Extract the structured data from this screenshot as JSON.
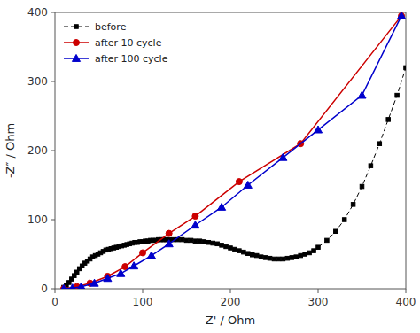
{
  "chart_data": {
    "type": "line",
    "xlabel": "Z' / Ohm",
    "ylabel": "-Z″ / Ohm",
    "xlim": [
      0,
      400
    ],
    "ylim": [
      0,
      400
    ],
    "xticks": [
      0,
      100,
      200,
      300,
      400
    ],
    "yticks": [
      0,
      100,
      200,
      300,
      400
    ],
    "grid": false,
    "legend": "upper left",
    "color": "#ffffff",
    "series": [
      {
        "name": "before",
        "color": "#000000",
        "marker": "square",
        "line_style": "dashed",
        "x": [
          10,
          13,
          16,
          19,
          22,
          25,
          28,
          31,
          34,
          37,
          40,
          43,
          46,
          49,
          52,
          55,
          58,
          61,
          64,
          67,
          70,
          73,
          76,
          79,
          82,
          85,
          88,
          91,
          94,
          97,
          100,
          103,
          106,
          109,
          112,
          115,
          118,
          121,
          124,
          127,
          130,
          135,
          140,
          145,
          150,
          155,
          160,
          165,
          170,
          175,
          180,
          185,
          190,
          195,
          200,
          205,
          210,
          215,
          220,
          225,
          230,
          235,
          240,
          245,
          250,
          255,
          260,
          265,
          270,
          275,
          280,
          285,
          290,
          295,
          300,
          310,
          320,
          330,
          340,
          350,
          360,
          370,
          380,
          390,
          400
        ],
        "values": [
          2,
          5,
          9,
          14,
          19,
          24,
          29,
          33,
          37,
          40,
          43,
          46,
          48,
          50,
          52,
          54,
          56,
          57,
          58,
          59,
          60,
          61,
          62,
          63,
          64,
          65,
          66,
          67,
          67,
          68,
          68,
          69,
          69,
          70,
          70,
          70,
          71,
          71,
          71,
          71,
          71,
          71,
          71,
          71,
          70,
          70,
          69,
          69,
          68,
          67,
          66,
          65,
          63,
          61,
          59,
          57,
          55,
          53,
          51,
          49,
          48,
          46,
          45,
          44,
          43,
          43,
          43,
          44,
          45,
          46,
          48,
          50,
          52,
          55,
          60,
          70,
          83,
          100,
          122,
          148,
          178,
          210,
          245,
          280,
          320
        ]
      },
      {
        "name": "after 10 cycle",
        "color": "#cc0000",
        "marker": "circle",
        "line_style": "solid",
        "x": [
          10,
          25,
          40,
          60,
          80,
          100,
          130,
          160,
          210,
          280,
          395
        ],
        "values": [
          0,
          3,
          8,
          18,
          32,
          52,
          80,
          105,
          155,
          210,
          395
        ]
      },
      {
        "name": "after 100 cycle",
        "color": "#0000cc",
        "marker": "triangle",
        "line_style": "solid",
        "x": [
          10,
          20,
          30,
          45,
          60,
          75,
          90,
          110,
          130,
          160,
          190,
          220,
          260,
          300,
          350,
          395
        ],
        "values": [
          0,
          1,
          3,
          8,
          15,
          22,
          33,
          48,
          65,
          92,
          118,
          150,
          190,
          230,
          280,
          395
        ]
      }
    ]
  }
}
